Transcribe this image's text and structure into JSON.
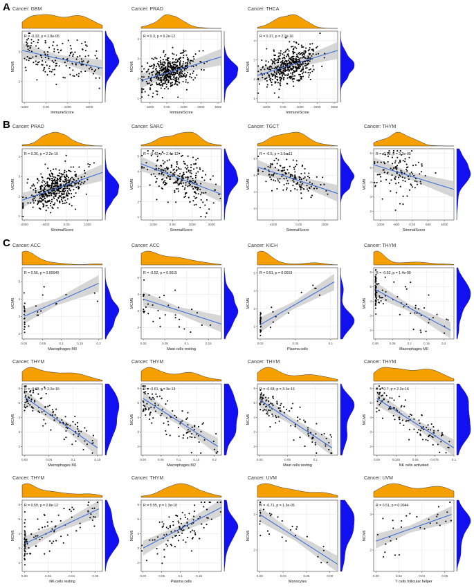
{
  "section_labels": {
    "a": "A",
    "b": "B",
    "c": "C"
  },
  "colors": {
    "density_top": "#f5a000",
    "density_right": "#1010f0",
    "regression": "#3d6fd6",
    "ci_band": "#c8c8c8",
    "points": "#000000",
    "grid": "#e4e4e4"
  },
  "chart_data": [
    {
      "id": "a1",
      "section": "A",
      "type": "scatter",
      "title": "Cancer: GBM",
      "stat": "R = -0.32, p = 2.8e-05",
      "xlabel": "ImmuneScore",
      "ylabel": "MCM6",
      "xticks": [
        -1000,
        0,
        1000,
        2000
      ],
      "yticks": [
        2,
        3
      ],
      "xlim": [
        -1100,
        2600
      ],
      "ylim": [
        1.3,
        3.7
      ],
      "n": 160,
      "x_dist": "unif",
      "fit": [
        -1100,
        3.05,
        2600,
        2.45
      ],
      "noise": 0.35,
      "seed": 11
    },
    {
      "id": "a2",
      "section": "A",
      "type": "scatter",
      "title": "Cancer: PRAD",
      "stat": "R = 0.3, p = 9.2e-12",
      "xlabel": "ImmuneScore",
      "ylabel": "MCM6",
      "xticks": [
        -1000,
        0,
        1000,
        2000,
        3000
      ],
      "yticks": [
        1,
        2,
        3,
        4
      ],
      "xlim": [
        -1500,
        3200
      ],
      "ylim": [
        0.8,
        4.4
      ],
      "n": 480,
      "x_dist": "norm",
      "x_mean": 200,
      "x_sd": 700,
      "fit": [
        -1500,
        1.9,
        3200,
        3.1
      ],
      "noise": 0.45,
      "seed": 12
    },
    {
      "id": "a3",
      "section": "A",
      "type": "scatter",
      "title": "Cancer: THCA",
      "stat": "R = 0.37, p = 2.2e-16",
      "xlabel": "ImmuneScore",
      "ylabel": "MCM6",
      "xticks": [
        -1000,
        0,
        1000,
        2000,
        3000
      ],
      "yticks": [
        1,
        2,
        3,
        4
      ],
      "xlim": [
        -1500,
        3200
      ],
      "ylim": [
        0.8,
        4.5
      ],
      "n": 500,
      "x_dist": "norm",
      "x_mean": 400,
      "x_sd": 800,
      "fit": [
        -1500,
        2.2,
        3200,
        3.5
      ],
      "noise": 0.45,
      "seed": 13
    },
    {
      "id": "b1",
      "section": "B",
      "type": "scatter",
      "title": "Cancer: PRAD",
      "stat": "R = 0.36, p = 2.2e-16",
      "xlabel": "StromalScore",
      "ylabel": "MCM6",
      "xticks": [
        -2000,
        -1000,
        0,
        1000
      ],
      "yticks": [
        1,
        2,
        3,
        4
      ],
      "xlim": [
        -2100,
        1700
      ],
      "ylim": [
        0.8,
        4.4
      ],
      "n": 480,
      "x_dist": "norm",
      "x_mean": -500,
      "x_sd": 650,
      "fit": [
        -2100,
        1.8,
        1700,
        3.2
      ],
      "noise": 0.45,
      "seed": 21
    },
    {
      "id": "b2",
      "section": "B",
      "type": "scatter",
      "title": "Cancer: SARC",
      "stat": "R = -0.42, p = 2.4e-12",
      "xlabel": "StromalScore",
      "ylabel": "MCM6",
      "xticks": [
        -1000,
        0,
        1000,
        2000
      ],
      "yticks": [
        1,
        2,
        3,
        4,
        5
      ],
      "xlim": [
        -1600,
        2500
      ],
      "ylim": [
        0.8,
        5.5
      ],
      "n": 260,
      "x_dist": "norm",
      "x_mean": 400,
      "x_sd": 800,
      "fit": [
        -1600,
        4.5,
        2500,
        2.5
      ],
      "noise": 0.7,
      "seed": 22
    },
    {
      "id": "b3",
      "section": "B",
      "type": "scatter",
      "title": "Cancer: TGCT",
      "stat": "R = -0.5, p = 3.5e-11",
      "xlabel": "StromalScore",
      "ylabel": "MCM6",
      "xticks": [
        -1000,
        0,
        1000
      ],
      "yticks": [
        3,
        4,
        5,
        6
      ],
      "xlim": [
        -1600,
        1500
      ],
      "ylim": [
        2.3,
        6.6
      ],
      "n": 150,
      "x_dist": "norm",
      "x_mean": -400,
      "x_sd": 600,
      "fit": [
        -1600,
        5.5,
        1500,
        3.9
      ],
      "noise": 0.45,
      "seed": 23
    },
    {
      "id": "b4",
      "section": "B",
      "type": "scatter",
      "title": "Cancer: THYM",
      "stat": "R = -0.38, p = 3.3e-05",
      "xlabel": "StromalScore",
      "ylabel": "MCM6",
      "xticks": [
        -1000,
        -500,
        0,
        500,
        1000
      ],
      "yticks": [
        2,
        3,
        4,
        5,
        6
      ],
      "xlim": [
        -1200,
        1300
      ],
      "ylim": [
        1.4,
        6.3
      ],
      "n": 120,
      "x_dist": "norm",
      "x_mean": -500,
      "x_sd": 400,
      "fit": [
        -1200,
        5.2,
        1300,
        3.5
      ],
      "noise": 0.9,
      "seed": 24
    },
    {
      "id": "c1",
      "section": "C",
      "type": "scatter",
      "title": "Cancer: ACC",
      "stat": "R = 0.56, p = 0.00049",
      "xlabel": "Macrophages M0",
      "ylabel": "MCM6",
      "xticks": [
        0.0,
        0.05,
        0.1,
        0.15,
        0.2
      ],
      "yticks": [
        2,
        3,
        4,
        5
      ],
      "xlim": [
        -0.005,
        0.21
      ],
      "ylim": [
        1.7,
        5.8
      ],
      "n": 35,
      "x_dist": "zeroheavy",
      "x_max": 0.2,
      "zero_frac": 0.55,
      "fit": [
        0,
        3.0,
        0.2,
        4.9
      ],
      "noise": 0.55,
      "seed": 31
    },
    {
      "id": "c2",
      "section": "C",
      "type": "scatter",
      "title": "Cancer: ACC",
      "stat": "R = -0.52, p = 0.0015",
      "xlabel": "Mast cells resting",
      "ylabel": "MCM6",
      "xticks": [
        0.0,
        0.05,
        0.1,
        0.15
      ],
      "yticks": [
        2,
        3,
        4,
        5
      ],
      "xlim": [
        -0.005,
        0.18
      ],
      "ylim": [
        1.3,
        5.6
      ],
      "n": 35,
      "x_dist": "zeroheavy",
      "x_max": 0.17,
      "zero_frac": 0.45,
      "fit": [
        0,
        3.7,
        0.18,
        2.2
      ],
      "noise": 0.6,
      "seed": 32
    },
    {
      "id": "c3",
      "section": "C",
      "type": "scatter",
      "title": "Cancer: KICH",
      "stat": "R = 0.51, p = 0.0019",
      "xlabel": "Plasma cells",
      "ylabel": "MCM6",
      "xticks": [
        0.0,
        0.05,
        0.1
      ],
      "yticks": [
        2,
        3,
        4,
        5
      ],
      "xlim": [
        -0.004,
        0.11
      ],
      "ylim": [
        1.3,
        5.3
      ],
      "n": 35,
      "x_dist": "zeroheavy",
      "x_max": 0.1,
      "zero_frac": 0.7,
      "fit": [
        0,
        2.1,
        0.105,
        4.5
      ],
      "noise": 0.35,
      "seed": 33
    },
    {
      "id": "c4",
      "section": "C",
      "type": "scatter",
      "title": "Cancer: THYM",
      "stat": "R = -0.52, p = 1.4e-09",
      "xlabel": "Macrophages M0",
      "ylabel": "MCM6",
      "xticks": [
        0.0,
        0.05,
        0.1,
        0.15,
        0.2
      ],
      "yticks": [
        2,
        3,
        4,
        5,
        6
      ],
      "xlim": [
        -0.005,
        0.23
      ],
      "ylim": [
        1.4,
        6.3
      ],
      "n": 110,
      "x_dist": "zeroheavy",
      "x_max": 0.22,
      "zero_frac": 0.5,
      "fit": [
        0,
        4.8,
        0.22,
        2.0
      ],
      "noise": 0.7,
      "seed": 34
    },
    {
      "id": "c5",
      "section": "C",
      "type": "scatter",
      "title": "Cancer: THYM",
      "stat": "R = -0.68, p = 2.2e-16",
      "xlabel": "Macrophages M1",
      "ylabel": "MCM6",
      "xticks": [
        0.0,
        0.05,
        0.1,
        0.15
      ],
      "yticks": [
        2,
        3,
        4,
        5,
        6
      ],
      "xlim": [
        -0.005,
        0.16
      ],
      "ylim": [
        1.4,
        6.3
      ],
      "n": 110,
      "x_dist": "skew",
      "x_max": 0.15,
      "fit": [
        0,
        5.4,
        0.15,
        1.9
      ],
      "noise": 0.6,
      "seed": 35
    },
    {
      "id": "c6",
      "section": "C",
      "type": "scatter",
      "title": "Cancer: THYM",
      "stat": "R = -0.61, p = 3e-13",
      "xlabel": "Macrophages M2",
      "ylabel": "MCM6",
      "xticks": [
        0.0,
        0.05,
        0.1,
        0.15,
        0.2
      ],
      "yticks": [
        2,
        3,
        4,
        5,
        6
      ],
      "xlim": [
        -0.005,
        0.22
      ],
      "ylim": [
        1.4,
        6.3
      ],
      "n": 110,
      "x_dist": "skew",
      "x_max": 0.21,
      "fit": [
        0,
        5.3,
        0.21,
        2.0
      ],
      "noise": 0.65,
      "seed": 36
    },
    {
      "id": "c7",
      "section": "C",
      "type": "scatter",
      "title": "Cancer: THYM",
      "stat": "R = -0.68, p = 3.1e-16",
      "xlabel": "Mast cells resting",
      "ylabel": "MCM6",
      "xticks": [
        0.0,
        0.05,
        0.1
      ],
      "yticks": [
        2,
        3,
        4,
        5,
        6
      ],
      "xlim": [
        -0.004,
        0.14
      ],
      "ylim": [
        1.4,
        6.3
      ],
      "n": 110,
      "x_dist": "skew",
      "x_max": 0.13,
      "fit": [
        0,
        5.2,
        0.13,
        1.9
      ],
      "noise": 0.55,
      "seed": 37
    },
    {
      "id": "c8",
      "section": "C",
      "type": "scatter",
      "title": "Cancer: THYM",
      "stat": "R = -0.7, p = 2.2e-16",
      "xlabel": "NK cells activated",
      "ylabel": "MCM6",
      "xticks": [
        0.0,
        0.025,
        0.05,
        0.075,
        0.1
      ],
      "yticks": [
        2,
        3,
        4,
        5,
        6
      ],
      "xlim": [
        -0.004,
        0.1
      ],
      "ylim": [
        1.4,
        6.3
      ],
      "n": 110,
      "x_dist": "skew",
      "x_max": 0.095,
      "fit": [
        0,
        5.3,
        0.1,
        1.9
      ],
      "noise": 0.55,
      "seed": 38
    },
    {
      "id": "c9",
      "section": "C",
      "type": "scatter",
      "title": "Cancer: THYM",
      "stat": "R = 0.59, p = 2.8e-12",
      "xlabel": "NK cells resting",
      "ylabel": "MCM6",
      "xticks": [
        0.0,
        0.02,
        0.04,
        0.06
      ],
      "yticks": [
        2,
        3,
        4,
        5,
        6
      ],
      "xlim": [
        -0.002,
        0.066
      ],
      "ylim": [
        1.4,
        6.3
      ],
      "n": 110,
      "x_dist": "zeroheavy",
      "x_max": 0.062,
      "zero_frac": 0.3,
      "fit": [
        0,
        3.3,
        0.063,
        5.7
      ],
      "noise": 0.6,
      "seed": 39
    },
    {
      "id": "c10",
      "section": "C",
      "type": "scatter",
      "title": "Cancer: THYM",
      "stat": "R = 0.55, p = 1.3e-10",
      "xlabel": "Plasma cells",
      "ylabel": "MCM6",
      "xticks": [
        0.0,
        0.05,
        0.1,
        0.15
      ],
      "yticks": [
        2,
        3,
        4,
        5,
        6
      ],
      "xlim": [
        -0.005,
        0.21
      ],
      "ylim": [
        1.4,
        6.3
      ],
      "n": 110,
      "x_dist": "norm",
      "x_mean": 0.1,
      "x_sd": 0.045,
      "fit": [
        0,
        3.0,
        0.21,
        5.8
      ],
      "noise": 0.65,
      "seed": 40
    },
    {
      "id": "c11",
      "section": "C",
      "type": "scatter",
      "title": "Cancer: UVM",
      "stat": "R = -0.71, p = 1.3e-05",
      "xlabel": "Monocytes",
      "ylabel": "MCM6",
      "xticks": [
        0.0,
        0.03,
        0.06,
        0.09
      ],
      "yticks": [
        2,
        3
      ],
      "xlim": [
        -0.003,
        0.1
      ],
      "ylim": [
        1.4,
        3.4
      ],
      "n": 30,
      "x_dist": "zeroheavy",
      "x_max": 0.09,
      "zero_frac": 0.35,
      "fit": [
        0,
        3.0,
        0.1,
        1.6
      ],
      "noise": 0.25,
      "seed": 41
    },
    {
      "id": "c12",
      "section": "C",
      "type": "scatter",
      "title": "Cancer: UVM",
      "stat": "R = 0.51, p = 0.0044",
      "xlabel": "T cells follicular helper",
      "ylabel": "MCM6",
      "xticks": [
        0.0,
        0.02,
        0.04,
        0.06
      ],
      "yticks": [
        2,
        3
      ],
      "xlim": [
        -0.002,
        0.068
      ],
      "ylim": [
        1.4,
        3.4
      ],
      "n": 30,
      "x_dist": "unif",
      "fit": [
        0,
        2.25,
        0.066,
        3.0
      ],
      "noise": 0.3,
      "seed": 42
    }
  ]
}
